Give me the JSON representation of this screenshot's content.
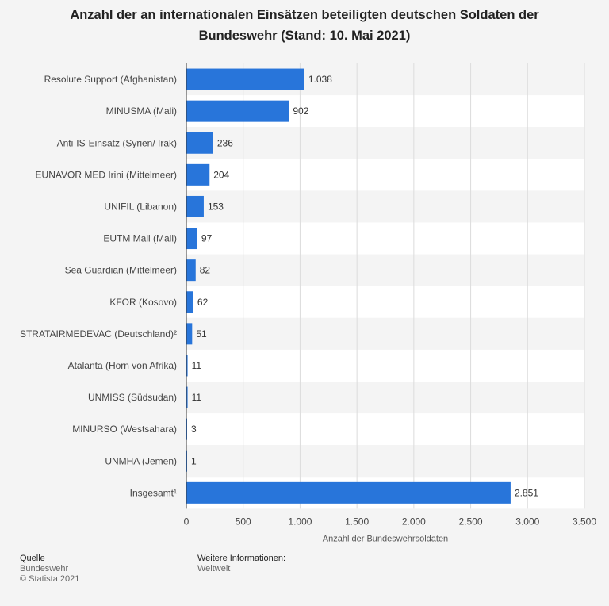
{
  "chart_data": {
    "type": "bar",
    "orientation": "horizontal",
    "title_lines": [
      "Anzahl der an internationalen Einsätzen beteiligten deutschen Soldaten der",
      "Bundeswehr (Stand: 10. Mai 2021)"
    ],
    "categories": [
      "Resolute Support (Afghanistan)",
      "MINUSMA (Mali)",
      "Anti-IS-Einsatz (Syrien/ Irak)",
      "EUNAVOR MED Irini (Mittelmeer)",
      "UNIFIL (Libanon)",
      "EUTM Mali (Mali)",
      "Sea Guardian (Mittelmeer)",
      "KFOR (Kosovo)",
      "STRATAIRMEDEVAC (Deutschland)²",
      "Atalanta (Horn von Afrika)",
      "UNMISS (Südsudan)",
      "MINURSO (Westsahara)",
      "UNMHA (Jemen)",
      "Insgesamt¹"
    ],
    "values": [
      1038,
      902,
      236,
      204,
      153,
      97,
      82,
      62,
      51,
      11,
      11,
      3,
      1,
      2851
    ],
    "value_labels": [
      "1.038",
      "902",
      "236",
      "204",
      "153",
      "97",
      "82",
      "62",
      "51",
      "11",
      "11",
      "3",
      "1",
      "2.851"
    ],
    "xlabel": "Anzahl der Bundeswehrsoldaten",
    "xlim": [
      0,
      3500
    ],
    "xticks": [
      0,
      500,
      1000,
      1500,
      2000,
      2500,
      3000,
      3500
    ],
    "xtick_labels": [
      "0",
      "500",
      "1.000",
      "1.500",
      "2.000",
      "2.500",
      "3.000",
      "3.500"
    ],
    "grid": true,
    "bar_color": "#2875da"
  },
  "footer": {
    "source_label": "Quelle",
    "source_name": "Bundeswehr",
    "copyright": "© Statista 2021",
    "info_label": "Weitere Informationen:",
    "info_value": "Weltweit"
  }
}
